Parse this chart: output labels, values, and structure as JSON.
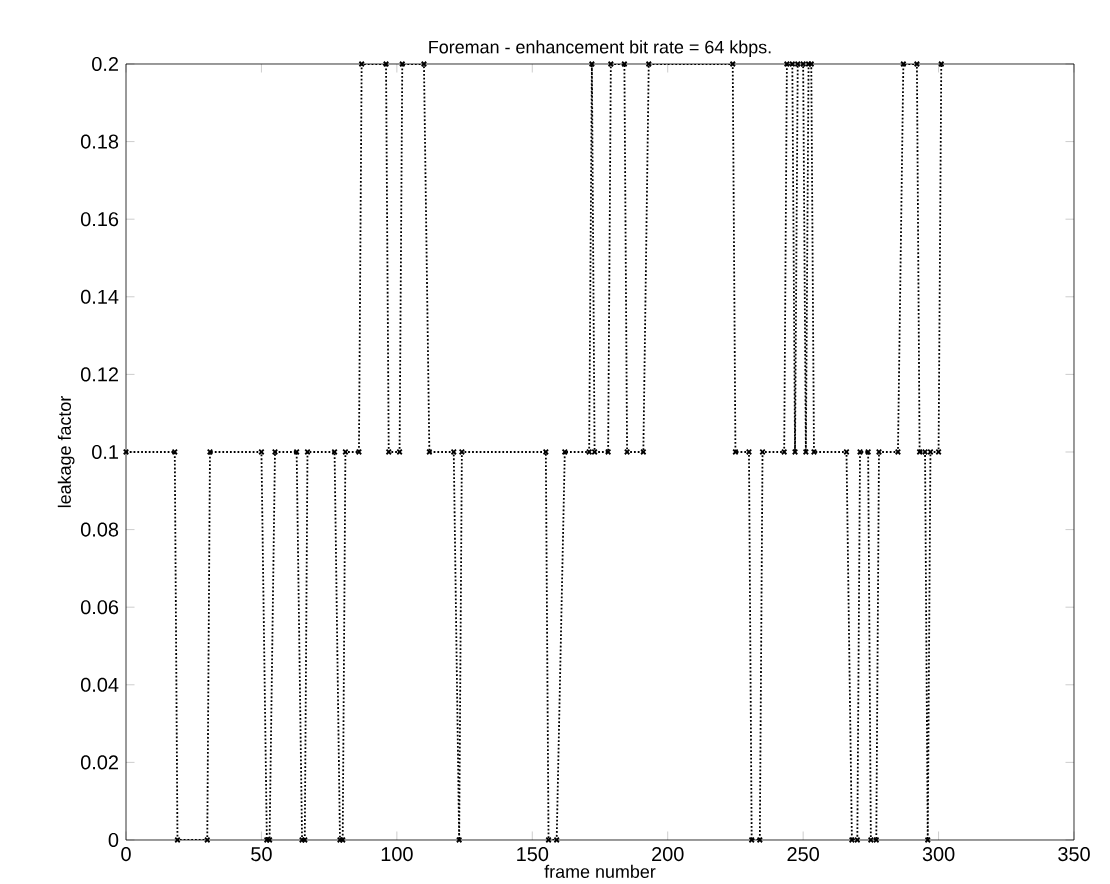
{
  "chart_data": {
    "type": "line",
    "title": "Foreman - enhancement bit rate = 64 kbps.",
    "xlabel": "frame number",
    "ylabel": "leakage factor",
    "series": [
      {
        "color": "#000000",
        "x": [
          0,
          18,
          19,
          30,
          31,
          50,
          52,
          53,
          55,
          63,
          65,
          66,
          67,
          77,
          79,
          80,
          81,
          86,
          87,
          96,
          97,
          101,
          102,
          110,
          112,
          121,
          123,
          124,
          155,
          156,
          159,
          162,
          171,
          172,
          173,
          178,
          179,
          184,
          185,
          191,
          193,
          224,
          225,
          230,
          231,
          234,
          235,
          243,
          244,
          246,
          247,
          248,
          250,
          251,
          252,
          253,
          254,
          266,
          268,
          270,
          271,
          274,
          275,
          277,
          278,
          285,
          287,
          292,
          293,
          295,
          296,
          297,
          300,
          301
        ],
        "values": [
          0.1,
          0.1,
          0,
          0,
          0.1,
          0.1,
          0,
          0,
          0.1,
          0.1,
          0,
          0,
          0.1,
          0.1,
          0,
          0,
          0.1,
          0.1,
          0.2,
          0.2,
          0.1,
          0.1,
          0.2,
          0.2,
          0.1,
          0.1,
          0,
          0.1,
          0.1,
          0,
          0,
          0.1,
          0.1,
          0.2,
          0.1,
          0.1,
          0.2,
          0.2,
          0.1,
          0.1,
          0.2,
          0.2,
          0.1,
          0.1,
          0,
          0,
          0.1,
          0.1,
          0.2,
          0.2,
          0.1,
          0.2,
          0.2,
          0.1,
          0.2,
          0.2,
          0.1,
          0.1,
          0,
          0,
          0.1,
          0.1,
          0,
          0,
          0.1,
          0.1,
          0.2,
          0.2,
          0.1,
          0.1,
          0,
          0.1,
          0.1,
          0.2
        ]
      }
    ],
    "xlim": [
      0,
      350
    ],
    "xticks": [
      0,
      50,
      100,
      150,
      200,
      250,
      300,
      350
    ],
    "ylim": [
      0,
      0.2
    ],
    "yticks": [
      0,
      0.02,
      0.04,
      0.06,
      0.08,
      0.1,
      0.12,
      0.14,
      0.16,
      0.18,
      0.2
    ],
    "marker": "cross",
    "line_style": "dotted"
  }
}
